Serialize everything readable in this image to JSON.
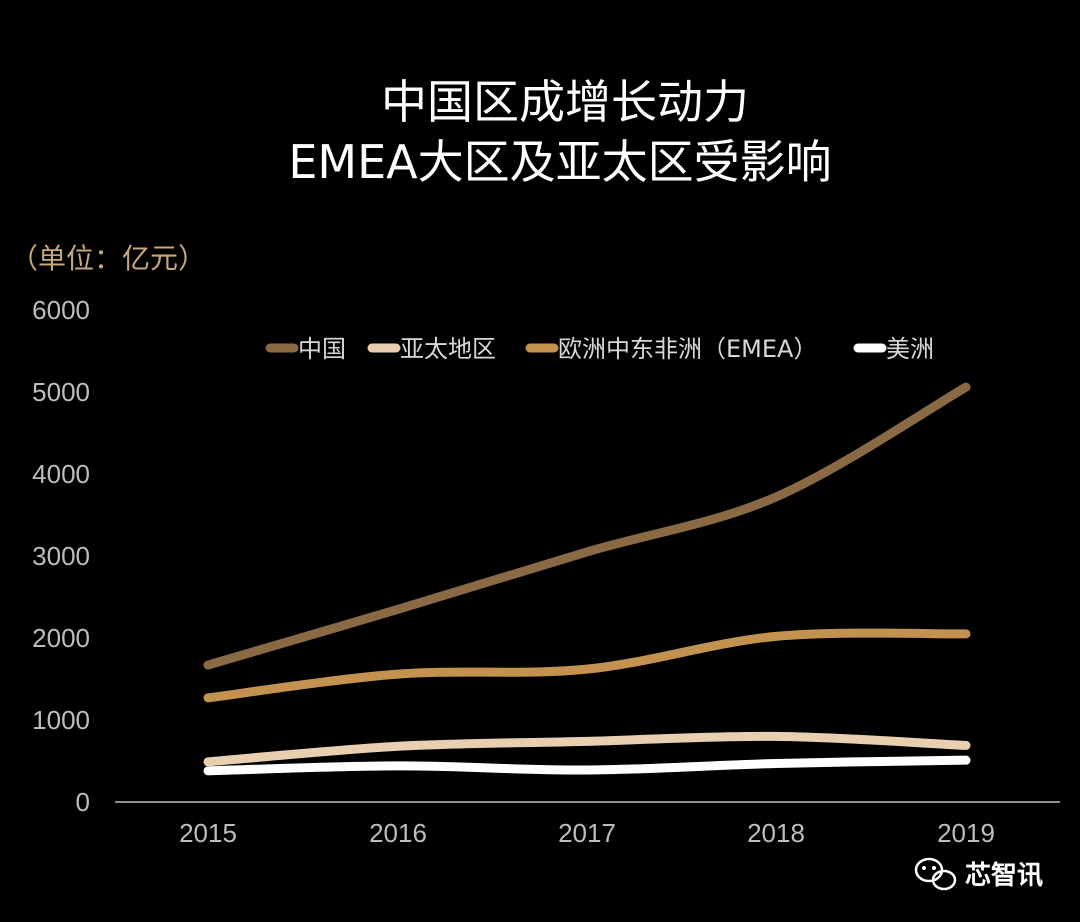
{
  "chart_data": {
    "type": "line",
    "title_lines": [
      "中国区成增长动力",
      "EMEA大区及亚太区受影响"
    ],
    "unit_label": "（单位：亿元）",
    "categories": [
      "2015",
      "2016",
      "2017",
      "2018",
      "2019"
    ],
    "ylim": [
      0,
      6000
    ],
    "yticks": [
      "0",
      "1000",
      "2000",
      "3000",
      "4000",
      "5000",
      "6000"
    ],
    "grid": false,
    "legend_position": "top",
    "series": [
      {
        "name": "中国",
        "color": "#8a6a45",
        "values": [
          1670,
          2350,
          3050,
          3720,
          5060
        ]
      },
      {
        "name": "亚太地区",
        "color": "#e7cfb0",
        "values": [
          490,
          680,
          740,
          800,
          690
        ]
      },
      {
        "name": "欧洲中东非洲（EMEA）",
        "color": "#c4924f",
        "values": [
          1270,
          1560,
          1620,
          2020,
          2050
        ]
      },
      {
        "name": "美洲",
        "color": "#ffffff",
        "values": [
          380,
          440,
          390,
          470,
          510
        ]
      }
    ]
  },
  "watermark": {
    "text": "芯智讯",
    "icon": "wechat-icon"
  }
}
